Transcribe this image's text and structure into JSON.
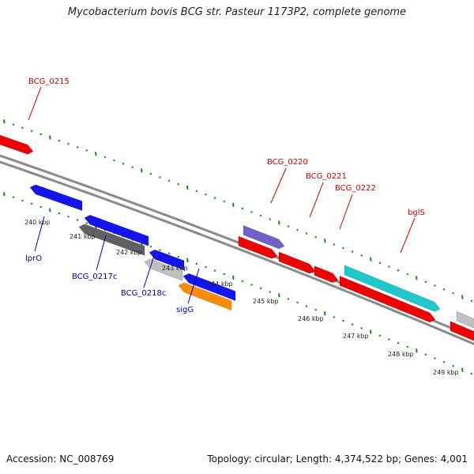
{
  "title": "Mycobacterium bovis BCG str. Pasteur 1173P2, complete genome",
  "footer": {
    "accession": "Accession: NC_008769",
    "topology": "Topology: circular; Length: 4,374,522 bp; Genes: 4,001"
  },
  "colors": {
    "backbone": "#8a8a8a",
    "tick": "#1f8a1f",
    "label_red": "#cc0000",
    "label_blue": "#0000aa",
    "gene_red": "#ee0000",
    "gene_blue": "#1414ee",
    "gene_dark_gray": "#606060",
    "gene_light_gray": "#c0c0c0",
    "gene_orange": "#ff8c00",
    "gene_violet": "#7060c8",
    "gene_cyan": "#20c8cc"
  },
  "scale_labels": [
    "240 kbp",
    "241 kbp",
    "242 kbp",
    "243 kbp",
    "244 kbp",
    "245 kbp",
    "246 kbp",
    "247 kbp",
    "248 kbp",
    "249 kbp"
  ],
  "forward_labels": [
    "BCG_0215",
    "BCG_0220",
    "BCG_0221",
    "BCG_0222",
    "bglS"
  ],
  "reverse_labels": [
    "lprO",
    "BCG_0217c",
    "BCG_0218c",
    "sigG"
  ]
}
